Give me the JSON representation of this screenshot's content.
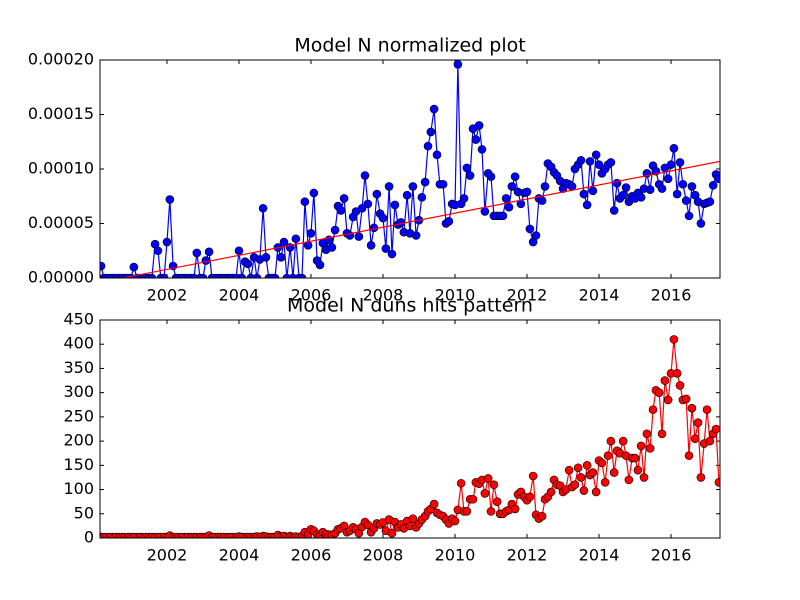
{
  "chart_data": [
    {
      "type": "line",
      "title": "Model N normalized plot",
      "x": [
        2000.17,
        2000.25,
        2000.33,
        2000.42,
        2000.5,
        2000.58,
        2000.67,
        2000.75,
        2000.83,
        2000.92,
        2001,
        2001.08,
        2001.17,
        2001.25,
        2001.33,
        2001.42,
        2001.5,
        2001.58,
        2001.67,
        2001.75,
        2001.83,
        2001.92,
        2002,
        2002.08,
        2002.17,
        2002.25,
        2002.33,
        2002.42,
        2002.5,
        2002.58,
        2002.67,
        2002.75,
        2002.83,
        2002.92,
        2003,
        2003.08,
        2003.17,
        2003.25,
        2003.33,
        2003.42,
        2003.5,
        2003.58,
        2003.67,
        2003.75,
        2003.83,
        2003.92,
        2004,
        2004.08,
        2004.17,
        2004.25,
        2004.33,
        2004.42,
        2004.5,
        2004.58,
        2004.67,
        2004.75,
        2004.83,
        2004.92,
        2005,
        2005.08,
        2005.17,
        2005.25,
        2005.33,
        2005.42,
        2005.5,
        2005.58,
        2005.67,
        2005.75,
        2005.83,
        2005.92,
        2006,
        2006.08,
        2006.17,
        2006.25,
        2006.33,
        2006.42,
        2006.5,
        2006.58,
        2006.67,
        2006.75,
        2006.83,
        2006.92,
        2007,
        2007.08,
        2007.17,
        2007.25,
        2007.33,
        2007.42,
        2007.5,
        2007.58,
        2007.67,
        2007.75,
        2007.83,
        2007.92,
        2008,
        2008.08,
        2008.17,
        2008.25,
        2008.33,
        2008.42,
        2008.5,
        2008.58,
        2008.67,
        2008.75,
        2008.83,
        2008.92,
        2009,
        2009.08,
        2009.17,
        2009.25,
        2009.33,
        2009.42,
        2009.5,
        2009.58,
        2009.67,
        2009.75,
        2009.83,
        2009.92,
        2010,
        2010.08,
        2010.17,
        2010.25,
        2010.33,
        2010.42,
        2010.5,
        2010.58,
        2010.67,
        2010.75,
        2010.83,
        2010.92,
        2011,
        2011.08,
        2011.17,
        2011.25,
        2011.33,
        2011.42,
        2011.5,
        2011.58,
        2011.67,
        2011.75,
        2011.83,
        2011.92,
        2012,
        2012.08,
        2012.17,
        2012.25,
        2012.33,
        2012.42,
        2012.5,
        2012.58,
        2012.67,
        2012.75,
        2012.83,
        2012.92,
        2013,
        2013.08,
        2013.17,
        2013.25,
        2013.33,
        2013.42,
        2013.5,
        2013.58,
        2013.67,
        2013.75,
        2013.83,
        2013.92,
        2014,
        2014.08,
        2014.17,
        2014.25,
        2014.33,
        2014.42,
        2014.5,
        2014.58,
        2014.67,
        2014.75,
        2014.83,
        2014.92,
        2015,
        2015.08,
        2015.17,
        2015.25,
        2015.33,
        2015.42,
        2015.5,
        2015.58,
        2015.67,
        2015.75,
        2015.83,
        2015.92,
        2016,
        2016.08,
        2016.17,
        2016.25,
        2016.33,
        2016.42,
        2016.5,
        2016.58,
        2016.67,
        2016.75,
        2016.83,
        2016.92,
        2017,
        2017.08,
        2017.17,
        2017.25,
        2017.33
      ],
      "series": [
        {
          "color": "#0000ff",
          "marker": "o",
          "values": [
            1.1e-05,
            0,
            0,
            0,
            0,
            0,
            0,
            0,
            0,
            0,
            0,
            1e-05,
            0,
            0,
            0,
            0,
            0,
            0,
            3.1e-05,
            2.5e-05,
            0,
            0,
            3.3e-05,
            7.2e-05,
            1.1e-05,
            0,
            0,
            0,
            0,
            0,
            0,
            0,
            2.3e-05,
            0,
            0,
            1.6e-05,
            2.4e-05,
            0,
            0,
            0,
            0,
            0,
            0,
            0,
            0,
            0,
            2.5e-05,
            0,
            1.5e-05,
            1.3e-05,
            0,
            1.9e-05,
            0,
            1.7e-05,
            6.4e-05,
            1.9e-05,
            0,
            0,
            0,
            2.8e-05,
            1.9e-05,
            3.3e-05,
            0,
            2.8e-05,
            0,
            3.6e-05,
            0,
            0,
            7e-05,
            3e-05,
            4.1e-05,
            7.8e-05,
            1.6e-05,
            1.2e-05,
            3.2e-05,
            2.6e-05,
            3.5e-05,
            2.8e-05,
            4.4e-05,
            6.6e-05,
            6.2e-05,
            7.3e-05,
            4.1e-05,
            3.9e-05,
            5.6e-05,
            6.1e-05,
            3.8e-05,
            6.4e-05,
            9.4e-05,
            6.8e-05,
            3e-05,
            4.6e-05,
            7.7e-05,
            5.9e-05,
            5.5e-05,
            2.7e-05,
            8.4e-05,
            2.2e-05,
            6.7e-05,
            4.9e-05,
            5.1e-05,
            4.2e-05,
            7.6e-05,
            4.1e-05,
            8.4e-05,
            3.9e-05,
            5.3e-05,
            7.4e-05,
            8.8e-05,
            0.000121,
            0.000134,
            0.000155,
            0.000113,
            8.6e-05,
            8.6e-05,
            5e-05,
            5.2e-05,
            6.8e-05,
            6.7e-05,
            0.000196,
            6.8e-05,
            7.3e-05,
            0.000101,
            9.4e-05,
            0.000137,
            0.000127,
            0.00014,
            0.000118,
            6.1e-05,
            9.6e-05,
            9.3e-05,
            5.7e-05,
            5.7e-05,
            5.7e-05,
            5.7e-05,
            7.3e-05,
            6.5e-05,
            8.4e-05,
            9.3e-05,
            7.9e-05,
            6.8e-05,
            7.8e-05,
            7.9e-05,
            4.5e-05,
            3.3e-05,
            3.9e-05,
            7.3e-05,
            7.1e-05,
            8.4e-05,
            0.000105,
            0.000102,
            9.7e-05,
            9.4e-05,
            8.9e-05,
            8.2e-05,
            8.7e-05,
            8.6e-05,
            8.4e-05,
            0.0001,
            0.000104,
            0.000108,
            7.7e-05,
            6.7e-05,
            0.000107,
            8e-05,
            0.000113,
            0.000104,
            9.6e-05,
            0.0001,
            0.000104,
            0.000106,
            6.2e-05,
            8.7e-05,
            7.3e-05,
            7.6e-05,
            8.3e-05,
            7e-05,
            7.5e-05,
            7.3e-05,
            7.8e-05,
            7.4e-05,
            8.2e-05,
            9.6e-05,
            8.1e-05,
            0.000103,
            9.8e-05,
            8.6e-05,
            8.2e-05,
            0.000101,
            9.1e-05,
            0.000104,
            0.000119,
            7.7e-05,
            0.000106,
            8.6e-05,
            7.1e-05,
            5.7e-05,
            8.4e-05,
            7.6e-05,
            7e-05,
            5e-05,
            6.8e-05,
            6.9e-05,
            7e-05,
            8.5e-05,
            9.5e-05,
            9.1e-05
          ]
        },
        {
          "color": "#ff0000",
          "marker": "none",
          "x": [
            2000,
            2017.36
          ],
          "values": [
            -5e-06,
            0.000107
          ]
        }
      ],
      "xlim": [
        2000.14,
        2017.36
      ],
      "ylim": [
        0,
        0.0002
      ],
      "xticks": [
        2002,
        2004,
        2006,
        2008,
        2010,
        2012,
        2014,
        2016
      ],
      "yticks": [
        {
          "value": 0,
          "label": "0.00000"
        },
        {
          "value": 5e-05,
          "label": "0.00005"
        },
        {
          "value": 0.0001,
          "label": "0.00010"
        },
        {
          "value": 0.00015,
          "label": "0.00015"
        },
        {
          "value": 0.0002,
          "label": "0.00020"
        }
      ]
    },
    {
      "type": "line",
      "title": "Model N duns hits pattern",
      "x": [
        2000.17,
        2000.25,
        2000.33,
        2000.42,
        2000.5,
        2000.58,
        2000.67,
        2000.75,
        2000.83,
        2000.92,
        2001,
        2001.08,
        2001.17,
        2001.25,
        2001.33,
        2001.42,
        2001.5,
        2001.58,
        2001.67,
        2001.75,
        2001.83,
        2001.92,
        2002,
        2002.08,
        2002.17,
        2002.25,
        2002.33,
        2002.42,
        2002.5,
        2002.58,
        2002.67,
        2002.75,
        2002.83,
        2002.92,
        2003,
        2003.08,
        2003.17,
        2003.25,
        2003.33,
        2003.42,
        2003.5,
        2003.58,
        2003.67,
        2003.75,
        2003.83,
        2003.92,
        2004,
        2004.08,
        2004.17,
        2004.25,
        2004.33,
        2004.42,
        2004.5,
        2004.58,
        2004.67,
        2004.75,
        2004.83,
        2004.92,
        2005,
        2005.08,
        2005.17,
        2005.25,
        2005.33,
        2005.42,
        2005.5,
        2005.58,
        2005.67,
        2005.75,
        2005.83,
        2005.92,
        2006,
        2006.08,
        2006.17,
        2006.25,
        2006.33,
        2006.42,
        2006.5,
        2006.58,
        2006.67,
        2006.75,
        2006.83,
        2006.92,
        2007,
        2007.08,
        2007.17,
        2007.25,
        2007.33,
        2007.42,
        2007.5,
        2007.58,
        2007.67,
        2007.75,
        2007.83,
        2007.92,
        2008,
        2008.08,
        2008.17,
        2008.25,
        2008.33,
        2008.42,
        2008.5,
        2008.58,
        2008.67,
        2008.75,
        2008.83,
        2008.92,
        2009,
        2009.08,
        2009.17,
        2009.25,
        2009.33,
        2009.42,
        2009.5,
        2009.58,
        2009.67,
        2009.75,
        2009.83,
        2009.92,
        2010,
        2010.08,
        2010.17,
        2010.25,
        2010.33,
        2010.42,
        2010.5,
        2010.58,
        2010.67,
        2010.75,
        2010.83,
        2010.92,
        2011,
        2011.08,
        2011.17,
        2011.25,
        2011.33,
        2011.42,
        2011.5,
        2011.58,
        2011.67,
        2011.75,
        2011.83,
        2011.92,
        2012,
        2012.08,
        2012.17,
        2012.25,
        2012.33,
        2012.42,
        2012.5,
        2012.58,
        2012.67,
        2012.75,
        2012.83,
        2012.92,
        2013,
        2013.08,
        2013.17,
        2013.25,
        2013.33,
        2013.42,
        2013.5,
        2013.58,
        2013.67,
        2013.75,
        2013.83,
        2013.92,
        2014,
        2014.08,
        2014.17,
        2014.25,
        2014.33,
        2014.42,
        2014.5,
        2014.58,
        2014.67,
        2014.75,
        2014.83,
        2014.92,
        2015,
        2015.08,
        2015.17,
        2015.25,
        2015.33,
        2015.42,
        2015.5,
        2015.58,
        2015.67,
        2015.75,
        2015.83,
        2015.92,
        2016,
        2016.08,
        2016.17,
        2016.25,
        2016.33,
        2016.42,
        2016.5,
        2016.58,
        2016.67,
        2016.75,
        2016.83,
        2016.92,
        2017,
        2017.08,
        2017.17,
        2017.25,
        2017.33
      ],
      "series": [
        {
          "color": "#ff0000",
          "marker": "o",
          "values": [
            2,
            2,
            2,
            2,
            2,
            2,
            2,
            2,
            2,
            2,
            2,
            2,
            2,
            2,
            2,
            2,
            2,
            2,
            2,
            2,
            2,
            2,
            2,
            5,
            2,
            2,
            2,
            2,
            2,
            2,
            2,
            2,
            2,
            2,
            2,
            2,
            5,
            2,
            2,
            2,
            2,
            2,
            2,
            2,
            2,
            2,
            3,
            2,
            2,
            2,
            2,
            2,
            3,
            2,
            4,
            3,
            2,
            2,
            2,
            6,
            3,
            4,
            2,
            4,
            2,
            3,
            2,
            4,
            12,
            8,
            18,
            15,
            7,
            5,
            12,
            8,
            7,
            6,
            10,
            18,
            20,
            25,
            12,
            15,
            22,
            19,
            10,
            23,
            33,
            27,
            12,
            20,
            30,
            28,
            32,
            15,
            38,
            10,
            33,
            22,
            28,
            20,
            35,
            25,
            40,
            22,
            30,
            38,
            45,
            55,
            60,
            70,
            52,
            48,
            45,
            38,
            30,
            40,
            35,
            58,
            113,
            55,
            55,
            80,
            80,
            115,
            112,
            120,
            92,
            123,
            55,
            110,
            75,
            50,
            50,
            55,
            58,
            70,
            60,
            90,
            95,
            85,
            78,
            85,
            128,
            48,
            40,
            45,
            80,
            85,
            95,
            120,
            110,
            108,
            95,
            100,
            140,
            105,
            110,
            145,
            125,
            98,
            150,
            130,
            135,
            95,
            160,
            155,
            115,
            170,
            200,
            135,
            180,
            175,
            200,
            170,
            120,
            165,
            165,
            140,
            190,
            125,
            215,
            185,
            265,
            305,
            300,
            215,
            325,
            285,
            340,
            410,
            340,
            315,
            285,
            287,
            170,
            268,
            205,
            238,
            125,
            195,
            265,
            200,
            215,
            225,
            115
          ]
        }
      ],
      "xlim": [
        2000.14,
        2017.36
      ],
      "ylim": [
        0,
        450
      ],
      "xticks": [
        2002,
        2004,
        2006,
        2008,
        2010,
        2012,
        2014,
        2016
      ],
      "yticks": [
        0,
        50,
        100,
        150,
        200,
        250,
        300,
        350,
        400,
        450
      ]
    }
  ]
}
